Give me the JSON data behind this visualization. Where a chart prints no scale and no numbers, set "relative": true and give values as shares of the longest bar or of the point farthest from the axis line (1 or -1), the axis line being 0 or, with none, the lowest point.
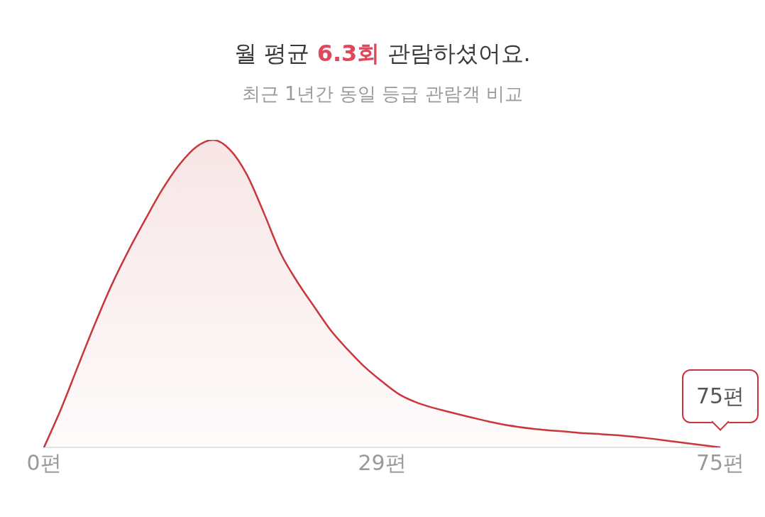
{
  "chart_data": {
    "type": "area",
    "title": "월 평균 6.3회 관람하셨어요.",
    "subtitle": "최근 1년간 동일 등급 관람객 비교",
    "relative": true,
    "categories": [
      "0편",
      null,
      null,
      null,
      null,
      null,
      null,
      null,
      null,
      null,
      null,
      null,
      null,
      null,
      null,
      null,
      null,
      null,
      null,
      null,
      "29편",
      null,
      null,
      null,
      null,
      null,
      null,
      null,
      null,
      null,
      null,
      null,
      null,
      null,
      null,
      null,
      null,
      null,
      null,
      null,
      "75편"
    ],
    "series": [
      {
        "color": "#c8373c",
        "values": [
          0,
          0.124,
          0.263,
          0.4,
          0.528,
          0.64,
          0.742,
          0.839,
          0.919,
          0.977,
          1,
          0.968,
          0.887,
          0.763,
          0.631,
          0.537,
          0.456,
          0.378,
          0.316,
          0.26,
          0.214,
          0.173,
          0.147,
          0.129,
          0.115,
          0.101,
          0.088,
          0.076,
          0.067,
          0.06,
          0.055,
          0.051,
          0.046,
          0.043,
          0.039,
          0.034,
          0.028,
          0.021,
          0.014,
          0.007,
          0
        ]
      }
    ],
    "annotations": [
      {
        "text": "75편",
        "x": "75편",
        "y": 0
      }
    ]
  }
}
